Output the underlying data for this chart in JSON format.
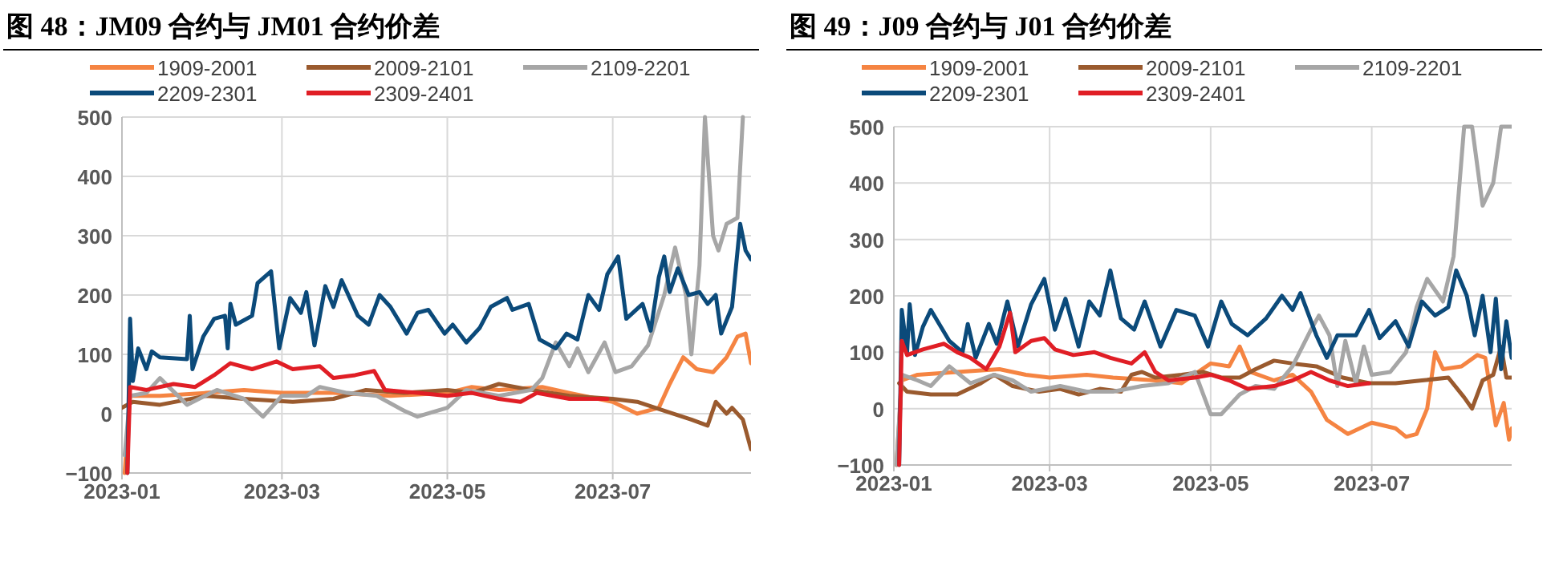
{
  "chart_data": [
    {
      "type": "line",
      "title": "图 48：JM09 合约与 JM01 合约价差",
      "xlim": [
        "2023-01-01",
        "2023-08-21"
      ],
      "xticks": [
        "2023-01",
        "2023-03",
        "2023-05",
        "2023-07"
      ],
      "ylim": [
        -100,
        500
      ],
      "yticks": [
        -100,
        0,
        100,
        200,
        300,
        400,
        500
      ],
      "grid": true,
      "legend": "top",
      "line_style": "solid",
      "marker": "none",
      "series": [
        {
          "name": "1909-2001",
          "color": "#f58442",
          "x": [
            "2023-01-02",
            "2023-01-04",
            "2023-01-15",
            "2023-02-01",
            "2023-02-15",
            "2023-03-01",
            "2023-03-20",
            "2023-04-10",
            "2023-05-01",
            "2023-05-10",
            "2023-05-20",
            "2023-06-05",
            "2023-06-15",
            "2023-07-01",
            "2023-07-10",
            "2023-07-18",
            "2023-07-22",
            "2023-07-27",
            "2023-08-01",
            "2023-08-07",
            "2023-08-12",
            "2023-08-16",
            "2023-08-19",
            "2023-08-21"
          ],
          "values": [
            -100,
            30,
            30,
            35,
            40,
            35,
            35,
            30,
            35,
            45,
            40,
            45,
            35,
            20,
            0,
            10,
            50,
            95,
            75,
            70,
            95,
            130,
            135,
            85
          ]
        },
        {
          "name": "2009-2101",
          "color": "#9a5a2e",
          "x": [
            "2023-01-01",
            "2023-01-05",
            "2023-01-15",
            "2023-02-01",
            "2023-02-15",
            "2023-03-05",
            "2023-03-20",
            "2023-04-01",
            "2023-04-15",
            "2023-05-01",
            "2023-05-10",
            "2023-05-20",
            "2023-06-01",
            "2023-06-15",
            "2023-07-01",
            "2023-07-10",
            "2023-07-20",
            "2023-07-30",
            "2023-08-05",
            "2023-08-08",
            "2023-08-12",
            "2023-08-14",
            "2023-08-18",
            "2023-08-21"
          ],
          "values": [
            10,
            20,
            15,
            30,
            25,
            20,
            25,
            40,
            35,
            40,
            35,
            50,
            40,
            30,
            25,
            20,
            5,
            -10,
            -20,
            20,
            0,
            10,
            -10,
            -60
          ]
        },
        {
          "name": "2109-2201",
          "color": "#a6a6a6",
          "x": [
            "2023-01-02",
            "2023-01-04",
            "2023-01-10",
            "2023-01-15",
            "2023-01-25",
            "2023-02-05",
            "2023-02-15",
            "2023-02-22",
            "2023-03-01",
            "2023-03-10",
            "2023-03-15",
            "2023-03-25",
            "2023-04-05",
            "2023-04-15",
            "2023-04-20",
            "2023-05-01",
            "2023-05-08",
            "2023-05-20",
            "2023-06-01",
            "2023-06-05",
            "2023-06-10",
            "2023-06-15",
            "2023-06-18",
            "2023-06-22",
            "2023-06-28",
            "2023-07-02",
            "2023-07-08",
            "2023-07-14",
            "2023-07-20",
            "2023-07-24",
            "2023-07-28",
            "2023-07-30",
            "2023-08-02",
            "2023-08-04",
            "2023-08-07",
            "2023-08-09",
            "2023-08-12",
            "2023-08-16",
            "2023-08-18"
          ],
          "values": [
            -70,
            30,
            35,
            60,
            15,
            40,
            25,
            -5,
            30,
            30,
            45,
            35,
            30,
            5,
            -5,
            10,
            40,
            30,
            40,
            60,
            120,
            80,
            110,
            70,
            120,
            70,
            80,
            115,
            200,
            280,
            200,
            100,
            250,
            500,
            300,
            275,
            320,
            330,
            500
          ]
        },
        {
          "name": "2209-2301",
          "color": "#0b4a7a",
          "x": [
            "2023-01-03",
            "2023-01-04",
            "2023-01-05",
            "2023-01-07",
            "2023-01-10",
            "2023-01-12",
            "2023-01-15",
            "2023-01-25",
            "2023-01-26",
            "2023-01-27",
            "2023-01-31",
            "2023-02-04",
            "2023-02-08",
            "2023-02-09",
            "2023-02-10",
            "2023-02-12",
            "2023-02-18",
            "2023-02-20",
            "2023-02-25",
            "2023-02-28",
            "2023-03-04",
            "2023-03-08",
            "2023-03-10",
            "2023-03-13",
            "2023-03-17",
            "2023-03-20",
            "2023-03-23",
            "2023-03-29",
            "2023-04-02",
            "2023-04-06",
            "2023-04-10",
            "2023-04-16",
            "2023-04-20",
            "2023-04-24",
            "2023-04-30",
            "2023-05-03",
            "2023-05-08",
            "2023-05-13",
            "2023-05-17",
            "2023-05-23",
            "2023-05-25",
            "2023-05-31",
            "2023-06-04",
            "2023-06-10",
            "2023-06-14",
            "2023-06-18",
            "2023-06-22",
            "2023-06-26",
            "2023-06-29",
            "2023-07-03",
            "2023-07-06",
            "2023-07-12",
            "2023-07-15",
            "2023-07-18",
            "2023-07-20",
            "2023-07-22",
            "2023-07-25",
            "2023-07-29",
            "2023-08-02",
            "2023-08-05",
            "2023-08-08",
            "2023-08-10",
            "2023-08-14",
            "2023-08-17",
            "2023-08-19",
            "2023-08-21"
          ],
          "values": [
            -100,
            160,
            55,
            110,
            75,
            105,
            95,
            92,
            165,
            75,
            130,
            160,
            165,
            110,
            185,
            150,
            165,
            220,
            240,
            110,
            195,
            170,
            205,
            115,
            215,
            180,
            225,
            165,
            150,
            200,
            180,
            135,
            170,
            175,
            135,
            150,
            120,
            145,
            180,
            195,
            175,
            185,
            125,
            110,
            135,
            125,
            200,
            175,
            235,
            265,
            160,
            185,
            140,
            230,
            265,
            205,
            245,
            200,
            205,
            185,
            200,
            135,
            180,
            320,
            275,
            260
          ]
        },
        {
          "name": "2309-2401",
          "color": "#e01e25",
          "x": [
            "2023-01-03",
            "2023-01-04",
            "2023-01-10",
            "2023-01-20",
            "2023-01-28",
            "2023-02-04",
            "2023-02-10",
            "2023-02-18",
            "2023-02-27",
            "2023-03-05",
            "2023-03-15",
            "2023-03-20",
            "2023-03-28",
            "2023-04-04",
            "2023-04-08",
            "2023-04-20",
            "2023-05-01",
            "2023-05-10",
            "2023-05-20",
            "2023-05-28",
            "2023-06-03",
            "2023-06-15",
            "2023-06-29"
          ],
          "values": [
            -100,
            45,
            40,
            50,
            45,
            65,
            85,
            75,
            88,
            75,
            80,
            60,
            65,
            72,
            40,
            35,
            30,
            35,
            25,
            20,
            35,
            25,
            25
          ]
        }
      ]
    },
    {
      "type": "line",
      "title": "图 49：J09 合约与 J01 合约价差",
      "xlim": [
        "2023-01-01",
        "2023-08-23"
      ],
      "xticks": [
        "2023-01",
        "2023-03",
        "2023-05",
        "2023-07"
      ],
      "ylim": [
        -100,
        500
      ],
      "yticks": [
        -100,
        0,
        100,
        200,
        300,
        400,
        500
      ],
      "grid": true,
      "legend": "top",
      "line_style": "solid",
      "marker": "none",
      "series": [
        {
          "name": "1909-2001",
          "color": "#f58442",
          "x": [
            "2023-01-02",
            "2023-01-04",
            "2023-01-10",
            "2023-01-25",
            "2023-02-10",
            "2023-02-20",
            "2023-03-01",
            "2023-03-15",
            "2023-03-25",
            "2023-04-10",
            "2023-04-20",
            "2023-05-01",
            "2023-05-08",
            "2023-05-12",
            "2023-05-16",
            "2023-05-25",
            "2023-06-01",
            "2023-06-08",
            "2023-06-14",
            "2023-06-22",
            "2023-07-01",
            "2023-07-10",
            "2023-07-14",
            "2023-07-18",
            "2023-07-22",
            "2023-07-25",
            "2023-07-28",
            "2023-08-04",
            "2023-08-10",
            "2023-08-13",
            "2023-08-17",
            "2023-08-20",
            "2023-08-22",
            "2023-08-23"
          ],
          "values": [
            -100,
            50,
            60,
            65,
            70,
            60,
            55,
            60,
            55,
            50,
            45,
            80,
            75,
            110,
            65,
            50,
            60,
            30,
            -20,
            -45,
            -25,
            -35,
            -50,
            -45,
            0,
            100,
            70,
            75,
            95,
            90,
            -30,
            10,
            -55,
            -35
          ]
        },
        {
          "name": "2009-2101",
          "color": "#9a5a2e",
          "x": [
            "2023-01-03",
            "2023-01-06",
            "2023-01-15",
            "2023-01-25",
            "2023-02-03",
            "2023-02-08",
            "2023-02-15",
            "2023-02-25",
            "2023-03-05",
            "2023-03-12",
            "2023-03-20",
            "2023-03-28",
            "2023-04-01",
            "2023-04-05",
            "2023-04-10",
            "2023-04-20",
            "2023-04-28",
            "2023-05-05",
            "2023-05-12",
            "2023-05-18",
            "2023-05-25",
            "2023-06-01",
            "2023-06-10",
            "2023-06-20",
            "2023-06-30",
            "2023-07-10",
            "2023-07-20",
            "2023-07-30",
            "2023-08-05",
            "2023-08-08",
            "2023-08-12",
            "2023-08-16",
            "2023-08-19",
            "2023-08-21",
            "2023-08-23"
          ],
          "values": [
            45,
            30,
            25,
            25,
            45,
            60,
            40,
            30,
            35,
            25,
            35,
            30,
            60,
            65,
            55,
            60,
            65,
            55,
            55,
            70,
            85,
            80,
            75,
            55,
            45,
            45,
            50,
            55,
            20,
            0,
            50,
            60,
            110,
            55,
            55
          ]
        },
        {
          "name": "2109-2201",
          "color": "#a6a6a6",
          "x": [
            "2023-01-02",
            "2023-01-04",
            "2023-01-10",
            "2023-01-15",
            "2023-01-22",
            "2023-01-30",
            "2023-02-08",
            "2023-02-15",
            "2023-02-22",
            "2023-03-05",
            "2023-03-15",
            "2023-03-25",
            "2023-04-05",
            "2023-04-15",
            "2023-04-25",
            "2023-05-01",
            "2023-05-05",
            "2023-05-12",
            "2023-05-18",
            "2023-05-25",
            "2023-06-01",
            "2023-06-08",
            "2023-06-11",
            "2023-06-15",
            "2023-06-18",
            "2023-06-21",
            "2023-06-25",
            "2023-06-28",
            "2023-07-01",
            "2023-07-08",
            "2023-07-14",
            "2023-07-18",
            "2023-07-22",
            "2023-07-28",
            "2023-08-01",
            "2023-08-05",
            "2023-08-08",
            "2023-08-12",
            "2023-08-16",
            "2023-08-19",
            "2023-08-23"
          ],
          "values": [
            -100,
            60,
            50,
            40,
            75,
            45,
            60,
            50,
            30,
            40,
            30,
            30,
            40,
            45,
            65,
            -10,
            -10,
            25,
            40,
            35,
            75,
            140,
            165,
            130,
            40,
            120,
            45,
            110,
            60,
            65,
            100,
            180,
            230,
            190,
            270,
            500,
            500,
            360,
            400,
            500,
            500
          ]
        },
        {
          "name": "2209-2301",
          "color": "#0b4a7a",
          "x": [
            "2023-01-03",
            "2023-01-04",
            "2023-01-06",
            "2023-01-07",
            "2023-01-09",
            "2023-01-12",
            "2023-01-15",
            "2023-01-22",
            "2023-01-27",
            "2023-01-29",
            "2023-02-01",
            "2023-02-06",
            "2023-02-09",
            "2023-02-13",
            "2023-02-17",
            "2023-02-22",
            "2023-02-27",
            "2023-03-03",
            "2023-03-07",
            "2023-03-12",
            "2023-03-16",
            "2023-03-20",
            "2023-03-24",
            "2023-03-28",
            "2023-04-02",
            "2023-04-06",
            "2023-04-12",
            "2023-04-18",
            "2023-04-25",
            "2023-04-30",
            "2023-05-05",
            "2023-05-09",
            "2023-05-15",
            "2023-05-22",
            "2023-05-28",
            "2023-06-01",
            "2023-06-04",
            "2023-06-10",
            "2023-06-14",
            "2023-06-18",
            "2023-06-25",
            "2023-06-30",
            "2023-07-04",
            "2023-07-10",
            "2023-07-15",
            "2023-07-20",
            "2023-07-25",
            "2023-07-30",
            "2023-08-02",
            "2023-08-06",
            "2023-08-09",
            "2023-08-12",
            "2023-08-15",
            "2023-08-17",
            "2023-08-19",
            "2023-08-21",
            "2023-08-23"
          ],
          "values": [
            -100,
            175,
            100,
            185,
            95,
            145,
            175,
            120,
            100,
            150,
            90,
            150,
            115,
            190,
            110,
            185,
            230,
            140,
            195,
            110,
            190,
            165,
            245,
            160,
            140,
            190,
            110,
            175,
            165,
            110,
            190,
            150,
            130,
            160,
            200,
            175,
            205,
            130,
            90,
            130,
            130,
            175,
            125,
            155,
            110,
            190,
            165,
            180,
            245,
            200,
            130,
            200,
            100,
            195,
            70,
            155,
            90
          ]
        },
        {
          "name": "2309-2401",
          "color": "#e01e25",
          "x": [
            "2023-01-03",
            "2023-01-04",
            "2023-01-06",
            "2023-01-12",
            "2023-01-20",
            "2023-01-25",
            "2023-01-30",
            "2023-02-05",
            "2023-02-10",
            "2023-02-14",
            "2023-02-16",
            "2023-02-22",
            "2023-02-27",
            "2023-03-03",
            "2023-03-10",
            "2023-03-18",
            "2023-03-24",
            "2023-04-01",
            "2023-04-06",
            "2023-04-10",
            "2023-04-15",
            "2023-04-25",
            "2023-05-01",
            "2023-05-08",
            "2023-05-15",
            "2023-05-25",
            "2023-06-01",
            "2023-06-08",
            "2023-06-15",
            "2023-06-22",
            "2023-06-30"
          ],
          "values": [
            -100,
            120,
            95,
            105,
            115,
            100,
            90,
            70,
            110,
            170,
            100,
            120,
            125,
            105,
            95,
            100,
            90,
            80,
            100,
            65,
            50,
            55,
            60,
            50,
            35,
            40,
            50,
            65,
            50,
            40,
            45
          ]
        }
      ]
    }
  ]
}
